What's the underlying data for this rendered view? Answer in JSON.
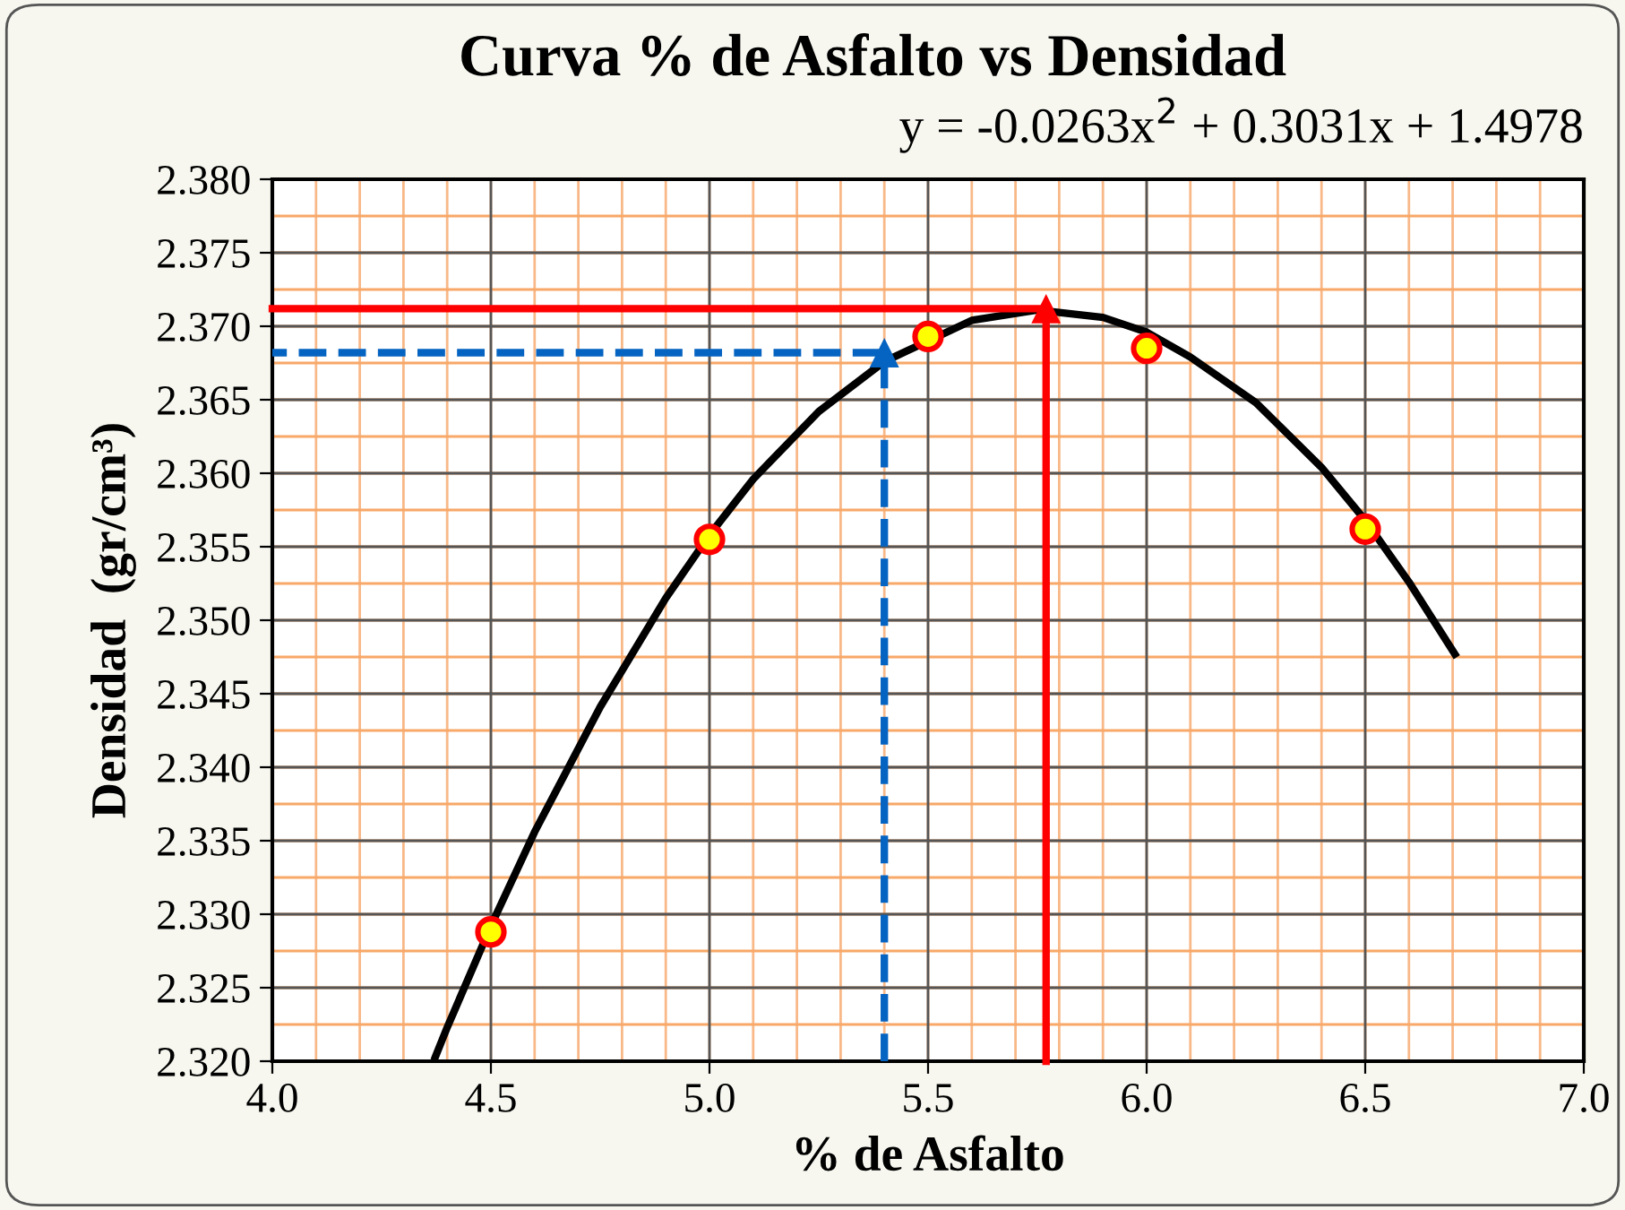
{
  "chart_data": {
    "type": "scatter",
    "title": "Curva % de Asfalto vs Densidad",
    "xlabel": "% de Asfalto",
    "ylabel": "Densidad  (gr/cm³)",
    "annotations": [
      "y = -0.0263x$^{2}$ + 0.3031x + 1.4978"
    ],
    "series": [
      {
        "type": "line",
        "color": "#000000",
        "x": [
          4.373,
          4.4,
          4.5,
          4.6,
          4.75,
          4.9,
          5.0,
          5.1,
          5.25,
          5.4,
          5.6,
          5.75,
          5.9,
          6.0,
          6.1,
          6.25,
          6.4,
          6.5,
          6.6,
          6.705
        ],
        "values": [
          2.3203,
          2.3223,
          2.3292,
          2.3356,
          2.3441,
          2.3515,
          2.3558,
          2.3596,
          2.3642,
          2.3676,
          2.3704,
          2.3711,
          2.3706,
          2.3696,
          2.3679,
          2.3648,
          2.3604,
          2.3568,
          2.3526,
          2.3477
        ],
        "marker": "none",
        "line_style": "solid"
      },
      {
        "type": "line",
        "color": "#ff0000",
        "x": [
          5.77,
          5.77,
          4.0
        ],
        "values": [
          2.32,
          2.3712,
          2.3712
        ],
        "marker": "none",
        "line_style": "solid"
      },
      {
        "type": "line",
        "color": "#0563c1",
        "x": [
          5.4,
          5.4,
          4.0
        ],
        "values": [
          2.32,
          2.3682,
          2.3682
        ],
        "marker": "none",
        "line_style": "dashed"
      },
      {
        "type": "scatter",
        "color": "#ff0000",
        "x": [
          5.77
        ],
        "values": [
          2.3712
        ],
        "marker": "triangle"
      },
      {
        "type": "scatter",
        "color": "#0563c1",
        "x": [
          5.4
        ],
        "values": [
          2.3682
        ],
        "marker": "triangle"
      },
      {
        "color": "#ffff00",
        "x": [
          4.5,
          5.0,
          5.5,
          6.0,
          6.5
        ],
        "values": [
          2.3288,
          2.3555,
          2.3693,
          2.3685,
          2.3562
        ],
        "marker": "circle"
      }
    ],
    "xlim": [
      4.0,
      7.0
    ],
    "xticks": [
      {
        "value": 4.0,
        "label": "4.0"
      },
      {
        "value": 4.5,
        "label": "4.5"
      },
      {
        "value": 5.0,
        "label": "5.0"
      },
      {
        "value": 5.5,
        "label": "5.5"
      },
      {
        "value": 6.0,
        "label": "6.0"
      },
      {
        "value": 6.5,
        "label": "6.5"
      },
      {
        "value": 7.0,
        "label": "7.0"
      }
    ],
    "ylim": [
      2.32,
      2.38
    ],
    "yticks": [
      {
        "value": 2.32,
        "label": "2.320"
      },
      {
        "value": 2.325,
        "label": "2.325"
      },
      {
        "value": 2.33,
        "label": "2.330"
      },
      {
        "value": 2.335,
        "label": "2.335"
      },
      {
        "value": 2.34,
        "label": "2.340"
      },
      {
        "value": 2.345,
        "label": "2.345"
      },
      {
        "value": 2.35,
        "label": "2.350"
      },
      {
        "value": 2.355,
        "label": "2.355"
      },
      {
        "value": 2.36,
        "label": "2.360"
      },
      {
        "value": 2.365,
        "label": "2.365"
      },
      {
        "value": 2.37,
        "label": "2.370"
      },
      {
        "value": 2.375,
        "label": "2.375"
      },
      {
        "value": 2.38,
        "label": "2.380"
      }
    ],
    "grid": true
  }
}
